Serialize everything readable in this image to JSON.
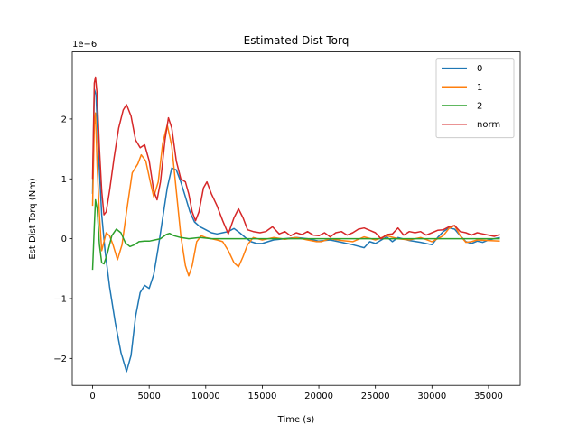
{
  "chart_data": {
    "type": "line",
    "title": "Estimated Dist Torq",
    "xlabel": "Time (s)",
    "ylabel": "Est Dist Torq (Nm)",
    "y_offset_text": "1e−6",
    "y_scale": 1e-06,
    "xlim": [
      -1800,
      37800
    ],
    "ylim": [
      -2.45,
      3.12
    ],
    "x_ticks": [
      0,
      5000,
      10000,
      15000,
      20000,
      25000,
      30000,
      35000
    ],
    "y_ticks": [
      -2,
      -1,
      0,
      1,
      2
    ],
    "y_tick_labels": [
      "−2",
      "−1",
      "0",
      "1",
      "2"
    ],
    "grid": false,
    "legend_position": "upper right",
    "series": [
      {
        "name": "0",
        "color": "#1f77b4",
        "points": [
          [
            0,
            0.75
          ],
          [
            150,
            2.5
          ],
          [
            300,
            2.4
          ],
          [
            500,
            1.5
          ],
          [
            800,
            0.4
          ],
          [
            1100,
            -0.2
          ],
          [
            1500,
            -0.8
          ],
          [
            2000,
            -1.4
          ],
          [
            2500,
            -1.9
          ],
          [
            3000,
            -2.22
          ],
          [
            3400,
            -1.95
          ],
          [
            3800,
            -1.3
          ],
          [
            4200,
            -0.9
          ],
          [
            4600,
            -0.78
          ],
          [
            5000,
            -0.83
          ],
          [
            5400,
            -0.6
          ],
          [
            5800,
            -0.15
          ],
          [
            6200,
            0.35
          ],
          [
            6600,
            0.85
          ],
          [
            7000,
            1.18
          ],
          [
            7400,
            1.15
          ],
          [
            7800,
            0.95
          ],
          [
            8200,
            0.7
          ],
          [
            8600,
            0.45
          ],
          [
            9000,
            0.28
          ],
          [
            9500,
            0.2
          ],
          [
            10000,
            0.15
          ],
          [
            10500,
            0.1
          ],
          [
            11000,
            0.08
          ],
          [
            11500,
            0.1
          ],
          [
            12000,
            0.12
          ],
          [
            12500,
            0.17
          ],
          [
            13000,
            0.1
          ],
          [
            13500,
            0.02
          ],
          [
            14000,
            -0.05
          ],
          [
            14500,
            -0.08
          ],
          [
            15000,
            -0.08
          ],
          [
            15500,
            -0.05
          ],
          [
            16000,
            -0.02
          ],
          [
            17000,
            0
          ],
          [
            18000,
            0.02
          ],
          [
            19000,
            0
          ],
          [
            20000,
            -0.04
          ],
          [
            21000,
            -0.02
          ],
          [
            22000,
            -0.06
          ],
          [
            23000,
            -0.1
          ],
          [
            24000,
            -0.15
          ],
          [
            24500,
            -0.05
          ],
          [
            25000,
            -0.08
          ],
          [
            26000,
            0.03
          ],
          [
            26500,
            -0.05
          ],
          [
            27000,
            0.02
          ],
          [
            28000,
            -0.03
          ],
          [
            29000,
            -0.06
          ],
          [
            30000,
            -0.1
          ],
          [
            30500,
            0.02
          ],
          [
            31000,
            0.12
          ],
          [
            31500,
            0.18
          ],
          [
            32000,
            0.16
          ],
          [
            32500,
            0.05
          ],
          [
            33000,
            -0.05
          ],
          [
            33500,
            -0.08
          ],
          [
            34000,
            -0.04
          ],
          [
            34500,
            -0.06
          ],
          [
            35000,
            -0.02
          ],
          [
            35500,
            0.0
          ],
          [
            36000,
            0.02
          ]
        ]
      },
      {
        "name": "1",
        "color": "#ff7f0e",
        "points": [
          [
            0,
            0.55
          ],
          [
            150,
            1.9
          ],
          [
            250,
            2.1
          ],
          [
            400,
            1.2
          ],
          [
            600,
            0.4
          ],
          [
            800,
            -0.2
          ],
          [
            1000,
            -0.05
          ],
          [
            1200,
            0.1
          ],
          [
            1500,
            0.05
          ],
          [
            1800,
            -0.1
          ],
          [
            2200,
            -0.35
          ],
          [
            2600,
            -0.1
          ],
          [
            3000,
            0.45
          ],
          [
            3500,
            1.1
          ],
          [
            4000,
            1.25
          ],
          [
            4300,
            1.4
          ],
          [
            4700,
            1.3
          ],
          [
            5100,
            0.95
          ],
          [
            5400,
            0.7
          ],
          [
            5800,
            0.95
          ],
          [
            6200,
            1.6
          ],
          [
            6600,
            1.9
          ],
          [
            7000,
            1.55
          ],
          [
            7400,
            0.8
          ],
          [
            7800,
            0.05
          ],
          [
            8200,
            -0.45
          ],
          [
            8500,
            -0.62
          ],
          [
            8800,
            -0.45
          ],
          [
            9200,
            -0.05
          ],
          [
            9600,
            0.05
          ],
          [
            10000,
            0.02
          ],
          [
            10500,
            0
          ],
          [
            11000,
            -0.02
          ],
          [
            11500,
            -0.05
          ],
          [
            12000,
            -0.2
          ],
          [
            12500,
            -0.4
          ],
          [
            12900,
            -0.47
          ],
          [
            13300,
            -0.3
          ],
          [
            13700,
            -0.1
          ],
          [
            14200,
            0.02
          ],
          [
            15000,
            -0.02
          ],
          [
            16000,
            0.02
          ],
          [
            17000,
            -0.01
          ],
          [
            18000,
            0.02
          ],
          [
            19000,
            -0.02
          ],
          [
            19800,
            -0.05
          ],
          [
            20200,
            -0.05
          ],
          [
            21000,
            0
          ],
          [
            22000,
            -0.03
          ],
          [
            23000,
            -0.05
          ],
          [
            24000,
            0.03
          ],
          [
            25000,
            -0.02
          ],
          [
            26000,
            0.05
          ],
          [
            27000,
            0
          ],
          [
            28000,
            -0.02
          ],
          [
            29000,
            0.02
          ],
          [
            30000,
            -0.05
          ],
          [
            31000,
            0.05
          ],
          [
            31500,
            0.17
          ],
          [
            32000,
            0.22
          ],
          [
            32500,
            0.05
          ],
          [
            33000,
            -0.06
          ],
          [
            33500,
            -0.05
          ],
          [
            34000,
            -0.02
          ],
          [
            35000,
            -0.03
          ],
          [
            36000,
            -0.04
          ]
        ]
      },
      {
        "name": "2",
        "color": "#2ca02c",
        "points": [
          [
            0,
            -0.52
          ],
          [
            150,
            0.2
          ],
          [
            250,
            0.65
          ],
          [
            400,
            0.5
          ],
          [
            600,
            -0.1
          ],
          [
            800,
            -0.4
          ],
          [
            1000,
            -0.42
          ],
          [
            1300,
            -0.25
          ],
          [
            1700,
            0.05
          ],
          [
            2100,
            0.16
          ],
          [
            2500,
            0.1
          ],
          [
            2900,
            -0.07
          ],
          [
            3300,
            -0.13
          ],
          [
            3700,
            -0.1
          ],
          [
            4100,
            -0.05
          ],
          [
            4600,
            -0.04
          ],
          [
            5000,
            -0.04
          ],
          [
            5500,
            -0.02
          ],
          [
            6000,
            0.0
          ],
          [
            6500,
            0.07
          ],
          [
            6800,
            0.09
          ],
          [
            7200,
            0.05
          ],
          [
            7800,
            0.02
          ],
          [
            8500,
            0.0
          ],
          [
            9500,
            0.02
          ],
          [
            10500,
            0.0
          ],
          [
            12000,
            0.0
          ],
          [
            14000,
            0.0
          ],
          [
            16000,
            0.0
          ],
          [
            18000,
            0.0
          ],
          [
            20000,
            0.0
          ],
          [
            22000,
            0.0
          ],
          [
            24000,
            0.0
          ],
          [
            26000,
            0.0
          ],
          [
            28000,
            0.0
          ],
          [
            30000,
            0.0
          ],
          [
            32000,
            0.0
          ],
          [
            34000,
            0.0
          ],
          [
            36000,
            0.0
          ]
        ]
      },
      {
        "name": "norm",
        "color": "#d62728",
        "points": [
          [
            0,
            1.0
          ],
          [
            150,
            2.6
          ],
          [
            250,
            2.7
          ],
          [
            400,
            2.4
          ],
          [
            600,
            1.5
          ],
          [
            800,
            0.8
          ],
          [
            1000,
            0.4
          ],
          [
            1200,
            0.45
          ],
          [
            1500,
            0.8
          ],
          [
            1900,
            1.35
          ],
          [
            2300,
            1.85
          ],
          [
            2700,
            2.15
          ],
          [
            3000,
            2.24
          ],
          [
            3400,
            2.05
          ],
          [
            3800,
            1.65
          ],
          [
            4200,
            1.52
          ],
          [
            4600,
            1.57
          ],
          [
            5000,
            1.3
          ],
          [
            5400,
            0.8
          ],
          [
            5700,
            0.65
          ],
          [
            6000,
            0.95
          ],
          [
            6400,
            1.65
          ],
          [
            6700,
            2.02
          ],
          [
            7000,
            1.85
          ],
          [
            7400,
            1.3
          ],
          [
            7800,
            1.0
          ],
          [
            8200,
            0.95
          ],
          [
            8500,
            0.75
          ],
          [
            8800,
            0.45
          ],
          [
            9100,
            0.3
          ],
          [
            9400,
            0.45
          ],
          [
            9800,
            0.85
          ],
          [
            10100,
            0.95
          ],
          [
            10500,
            0.75
          ],
          [
            11000,
            0.55
          ],
          [
            11500,
            0.3
          ],
          [
            12000,
            0.08
          ],
          [
            12500,
            0.35
          ],
          [
            12900,
            0.5
          ],
          [
            13300,
            0.35
          ],
          [
            13700,
            0.15
          ],
          [
            14200,
            0.12
          ],
          [
            14800,
            0.1
          ],
          [
            15300,
            0.12
          ],
          [
            15900,
            0.2
          ],
          [
            16500,
            0.08
          ],
          [
            17000,
            0.12
          ],
          [
            17500,
            0.05
          ],
          [
            18000,
            0.1
          ],
          [
            18500,
            0.07
          ],
          [
            19000,
            0.12
          ],
          [
            19500,
            0.06
          ],
          [
            20000,
            0.05
          ],
          [
            20500,
            0.1
          ],
          [
            21000,
            0.03
          ],
          [
            21500,
            0.1
          ],
          [
            22000,
            0.12
          ],
          [
            22500,
            0.06
          ],
          [
            23000,
            0.1
          ],
          [
            23500,
            0.16
          ],
          [
            24000,
            0.18
          ],
          [
            24500,
            0.14
          ],
          [
            25000,
            0.1
          ],
          [
            25500,
            0.0
          ],
          [
            26000,
            0.07
          ],
          [
            26500,
            0.08
          ],
          [
            27000,
            0.18
          ],
          [
            27500,
            0.06
          ],
          [
            28000,
            0.12
          ],
          [
            28500,
            0.1
          ],
          [
            29000,
            0.12
          ],
          [
            29500,
            0.06
          ],
          [
            30000,
            0.1
          ],
          [
            30500,
            0.14
          ],
          [
            31000,
            0.15
          ],
          [
            31500,
            0.2
          ],
          [
            32000,
            0.22
          ],
          [
            32500,
            0.12
          ],
          [
            33000,
            0.1
          ],
          [
            33500,
            0.06
          ],
          [
            34000,
            0.1
          ],
          [
            34500,
            0.08
          ],
          [
            35000,
            0.06
          ],
          [
            35500,
            0.04
          ],
          [
            36000,
            0.07
          ]
        ]
      }
    ]
  }
}
